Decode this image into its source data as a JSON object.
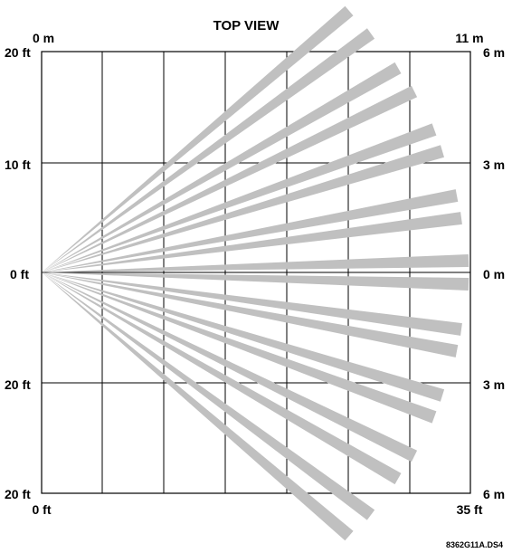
{
  "title": "TOP VIEW",
  "left_labels": {
    "top_m": "0 m",
    "top_ft": "20 ft",
    "upper_ft": "10 ft",
    "middle_ft": "0 ft",
    "lower_ft": "20 ft",
    "bottom_ft": "20 ft",
    "bottom_x": "0 ft"
  },
  "right_labels": {
    "top_m": "11 m",
    "top": "6 m",
    "upper": "3 m",
    "middle": "0 m",
    "lower": "3 m",
    "bottom": "6 m",
    "bottom_x": "35 ft"
  },
  "figure_code": "8362G11A.DS4",
  "beam_color": "#c0c0c0",
  "line_color": "#000000"
}
